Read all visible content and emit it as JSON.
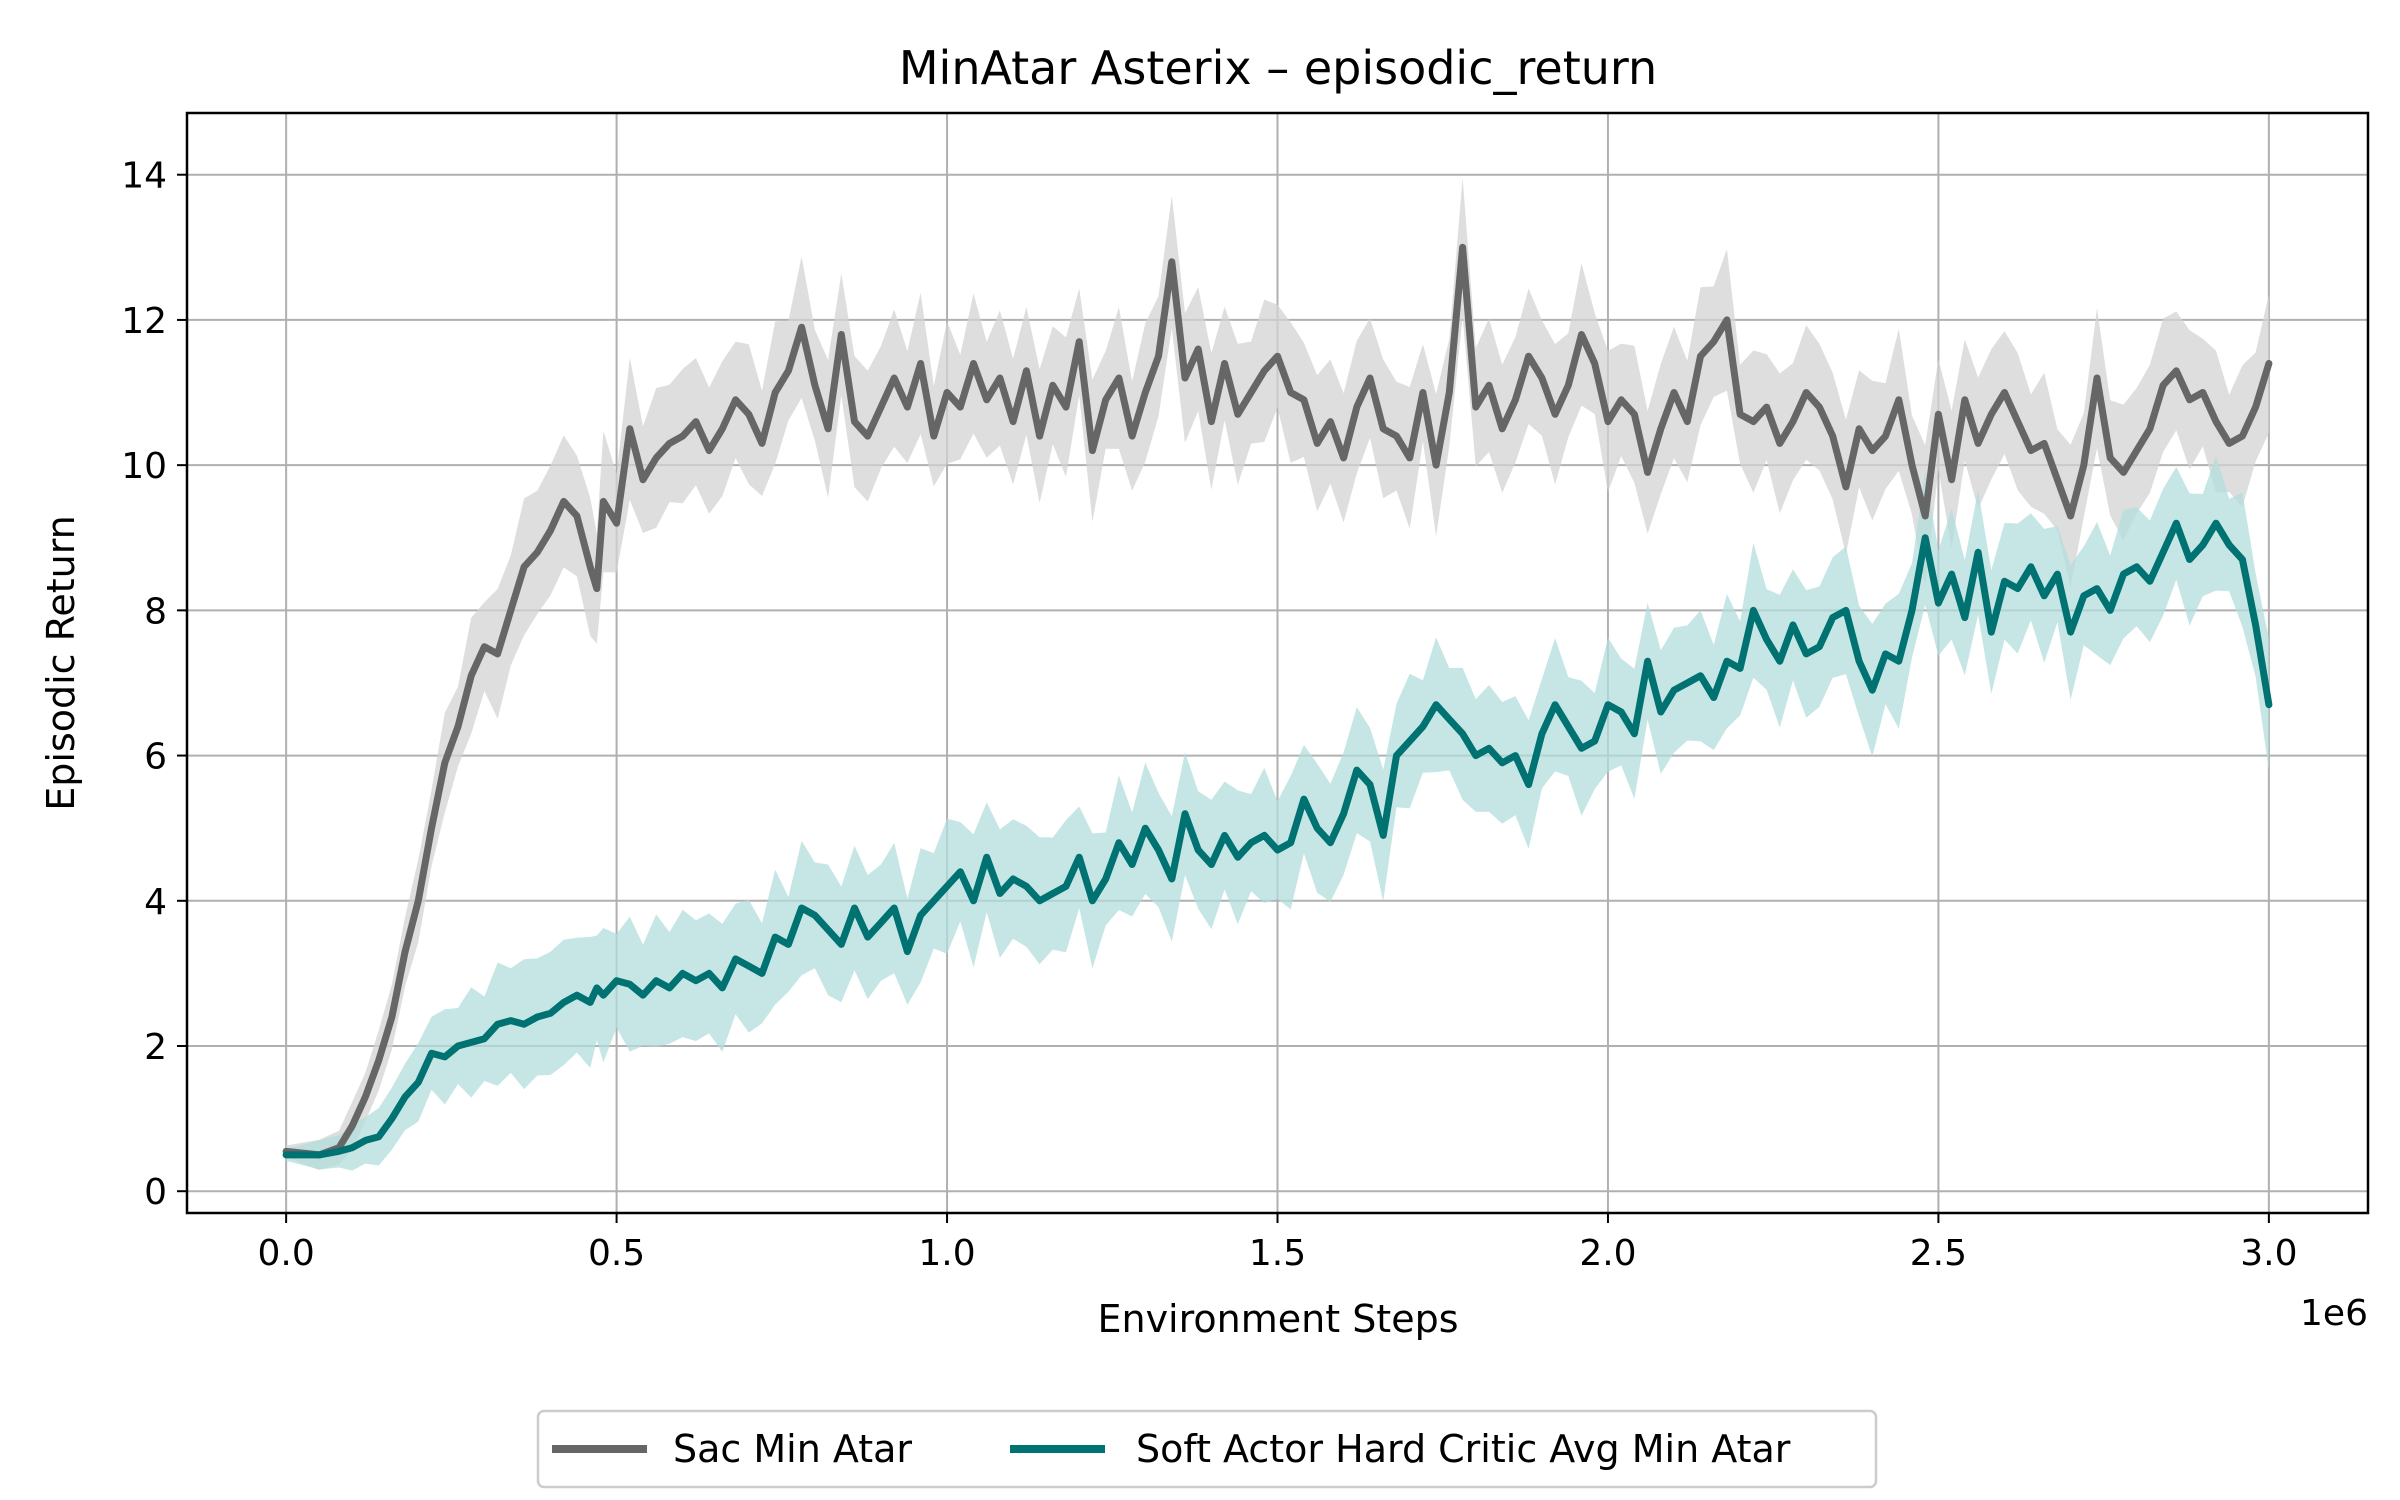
{
  "chart_data": {
    "type": "line",
    "title": "MinAtar Asterix – episodic_return",
    "xlabel": "Environment Steps",
    "ylabel": "Episodic Return",
    "x_offset_label": "1e6",
    "xlim": [
      -0.15,
      3.15
    ],
    "ylim": [
      -0.3,
      14.85
    ],
    "x_ticks": [
      0.0,
      0.5,
      1.0,
      1.5,
      2.0,
      2.5,
      3.0
    ],
    "x_tick_labels": [
      "0.0",
      "0.5",
      "1.0",
      "1.5",
      "2.0",
      "2.5",
      "3.0"
    ],
    "y_ticks": [
      0,
      2,
      4,
      6,
      8,
      10,
      12,
      14
    ],
    "y_tick_labels": [
      "0",
      "2",
      "4",
      "6",
      "8",
      "10",
      "12",
      "14"
    ],
    "grid": true,
    "legend_position": "bottom-center",
    "series": [
      {
        "name": "Sac Min Atar",
        "color": "#666666",
        "band_color": "#d3d3d3",
        "x": [
          0.0,
          0.05,
          0.08,
          0.1,
          0.12,
          0.14,
          0.16,
          0.18,
          0.2,
          0.22,
          0.24,
          0.26,
          0.28,
          0.3,
          0.32,
          0.34,
          0.36,
          0.38,
          0.4,
          0.42,
          0.44,
          0.46,
          0.47,
          0.48,
          0.5,
          0.52,
          0.54,
          0.56,
          0.58,
          0.6,
          0.62,
          0.64,
          0.66,
          0.68,
          0.7,
          0.72,
          0.74,
          0.76,
          0.78,
          0.8,
          0.82,
          0.84,
          0.86,
          0.88,
          0.9,
          0.92,
          0.94,
          0.96,
          0.98,
          1.0,
          1.02,
          1.04,
          1.06,
          1.08,
          1.1,
          1.12,
          1.14,
          1.16,
          1.18,
          1.2,
          1.22,
          1.24,
          1.26,
          1.28,
          1.3,
          1.32,
          1.34,
          1.36,
          1.38,
          1.4,
          1.42,
          1.44,
          1.46,
          1.48,
          1.5,
          1.52,
          1.54,
          1.56,
          1.58,
          1.6,
          1.62,
          1.64,
          1.66,
          1.68,
          1.7,
          1.72,
          1.74,
          1.76,
          1.78,
          1.8,
          1.82,
          1.84,
          1.86,
          1.88,
          1.9,
          1.92,
          1.94,
          1.96,
          1.98,
          2.0,
          2.02,
          2.04,
          2.06,
          2.08,
          2.1,
          2.12,
          2.14,
          2.16,
          2.18,
          2.2,
          2.22,
          2.24,
          2.26,
          2.28,
          2.3,
          2.32,
          2.34,
          2.36,
          2.38,
          2.4,
          2.42,
          2.44,
          2.46,
          2.48,
          2.5,
          2.52,
          2.54,
          2.56,
          2.58,
          2.6,
          2.62,
          2.64,
          2.66,
          2.68,
          2.7,
          2.72,
          2.74,
          2.76,
          2.78,
          2.8,
          2.82,
          2.84,
          2.86,
          2.88,
          2.9,
          2.92,
          2.94,
          2.96,
          2.98,
          3.0
        ],
        "y": [
          0.55,
          0.5,
          0.6,
          0.9,
          1.3,
          1.8,
          2.4,
          3.3,
          4.0,
          5.0,
          5.9,
          6.4,
          7.1,
          7.5,
          7.4,
          8.0,
          8.6,
          8.8,
          9.1,
          9.5,
          9.3,
          8.6,
          8.3,
          9.5,
          9.2,
          10.5,
          9.8,
          10.1,
          10.3,
          10.4,
          10.6,
          10.2,
          10.5,
          10.9,
          10.7,
          10.3,
          11.0,
          11.3,
          11.9,
          11.1,
          10.5,
          11.8,
          10.6,
          10.4,
          10.8,
          11.2,
          10.8,
          11.4,
          10.4,
          11.0,
          10.8,
          11.4,
          10.9,
          11.2,
          10.6,
          11.3,
          10.4,
          11.1,
          10.8,
          11.7,
          10.2,
          10.9,
          11.2,
          10.4,
          11.0,
          11.5,
          12.8,
          11.2,
          11.6,
          10.6,
          11.4,
          10.7,
          11.0,
          11.3,
          11.5,
          11.0,
          10.9,
          10.3,
          10.6,
          10.1,
          10.8,
          11.2,
          10.5,
          10.4,
          10.1,
          11.0,
          10.0,
          11.0,
          13.0,
          10.8,
          11.1,
          10.5,
          10.9,
          11.5,
          11.2,
          10.7,
          11.1,
          11.8,
          11.4,
          10.6,
          10.9,
          10.7,
          9.9,
          10.5,
          11.0,
          10.6,
          11.5,
          11.7,
          12.0,
          10.7,
          10.6,
          10.8,
          10.3,
          10.6,
          11.0,
          10.8,
          10.4,
          9.7,
          10.5,
          10.2,
          10.4,
          10.9,
          10.0,
          9.3,
          10.7,
          9.8,
          10.9,
          10.3,
          10.7,
          11.0,
          10.6,
          10.2,
          10.3,
          9.8,
          9.3,
          10.0,
          11.2,
          10.1,
          9.9,
          10.2,
          10.5,
          11.1,
          11.3,
          10.9,
          11.0,
          10.6,
          10.3,
          10.4,
          10.8,
          11.4
        ]
      },
      {
        "name": "Soft Actor Hard Critic Avg Min Atar",
        "color": "#007272",
        "band_color": "#b3dede",
        "x": [
          0.0,
          0.05,
          0.08,
          0.1,
          0.12,
          0.14,
          0.16,
          0.18,
          0.2,
          0.22,
          0.24,
          0.26,
          0.28,
          0.3,
          0.32,
          0.34,
          0.36,
          0.38,
          0.4,
          0.42,
          0.44,
          0.46,
          0.47,
          0.48,
          0.5,
          0.52,
          0.54,
          0.56,
          0.58,
          0.6,
          0.62,
          0.64,
          0.66,
          0.68,
          0.7,
          0.72,
          0.74,
          0.76,
          0.78,
          0.8,
          0.82,
          0.84,
          0.86,
          0.88,
          0.9,
          0.92,
          0.94,
          0.96,
          0.98,
          1.0,
          1.02,
          1.04,
          1.06,
          1.08,
          1.1,
          1.12,
          1.14,
          1.16,
          1.18,
          1.2,
          1.22,
          1.24,
          1.26,
          1.28,
          1.3,
          1.32,
          1.34,
          1.36,
          1.38,
          1.4,
          1.42,
          1.44,
          1.46,
          1.48,
          1.5,
          1.52,
          1.54,
          1.56,
          1.58,
          1.6,
          1.62,
          1.64,
          1.66,
          1.68,
          1.7,
          1.72,
          1.74,
          1.76,
          1.78,
          1.8,
          1.82,
          1.84,
          1.86,
          1.88,
          1.9,
          1.92,
          1.94,
          1.96,
          1.98,
          2.0,
          2.02,
          2.04,
          2.06,
          2.08,
          2.1,
          2.12,
          2.14,
          2.16,
          2.18,
          2.2,
          2.22,
          2.24,
          2.26,
          2.28,
          2.3,
          2.32,
          2.34,
          2.36,
          2.38,
          2.4,
          2.42,
          2.44,
          2.46,
          2.48,
          2.5,
          2.52,
          2.54,
          2.56,
          2.58,
          2.6,
          2.62,
          2.64,
          2.66,
          2.68,
          2.7,
          2.72,
          2.74,
          2.76,
          2.78,
          2.8,
          2.82,
          2.84,
          2.86,
          2.88,
          2.9,
          2.92,
          2.94,
          2.96,
          2.98,
          3.0
        ],
        "y": [
          0.5,
          0.5,
          0.55,
          0.6,
          0.7,
          0.75,
          1.0,
          1.3,
          1.5,
          1.9,
          1.85,
          2.0,
          2.05,
          2.1,
          2.3,
          2.35,
          2.3,
          2.4,
          2.45,
          2.6,
          2.7,
          2.6,
          2.8,
          2.7,
          2.9,
          2.85,
          2.7,
          2.9,
          2.8,
          3.0,
          2.9,
          3.0,
          2.8,
          3.2,
          3.1,
          3.0,
          3.5,
          3.4,
          3.9,
          3.8,
          3.6,
          3.4,
          3.9,
          3.5,
          3.7,
          3.9,
          3.3,
          3.8,
          4.0,
          4.2,
          4.4,
          4.0,
          4.6,
          4.1,
          4.3,
          4.2,
          4.0,
          4.1,
          4.2,
          4.6,
          4.0,
          4.3,
          4.8,
          4.5,
          5.0,
          4.7,
          4.3,
          5.2,
          4.7,
          4.5,
          4.9,
          4.6,
          4.8,
          4.9,
          4.7,
          4.8,
          5.4,
          5.0,
          4.8,
          5.2,
          5.8,
          5.6,
          4.9,
          6.0,
          6.2,
          6.4,
          6.7,
          6.5,
          6.3,
          6.0,
          6.1,
          5.9,
          6.0,
          5.6,
          6.3,
          6.7,
          6.4,
          6.1,
          6.2,
          6.7,
          6.6,
          6.3,
          7.3,
          6.6,
          6.9,
          7.0,
          7.1,
          6.8,
          7.3,
          7.2,
          8.0,
          7.6,
          7.3,
          7.8,
          7.4,
          7.5,
          7.9,
          8.0,
          7.3,
          6.9,
          7.4,
          7.3,
          8.0,
          9.0,
          8.1,
          8.5,
          7.9,
          8.8,
          7.7,
          8.4,
          8.3,
          8.6,
          8.2,
          8.5,
          7.7,
          8.2,
          8.3,
          8.0,
          8.5,
          8.6,
          8.4,
          8.8,
          9.2,
          8.7,
          8.9,
          9.2,
          8.9,
          8.7,
          7.8,
          6.7
        ]
      }
    ]
  }
}
